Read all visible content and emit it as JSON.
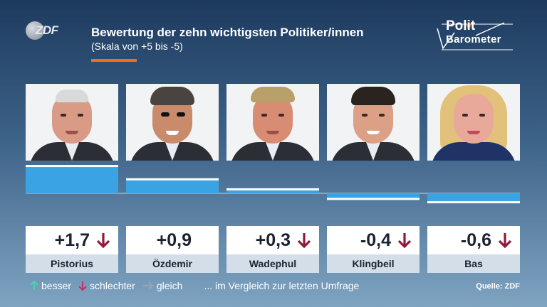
{
  "broadcaster_logo": "ZDF",
  "brand": {
    "line1": "Polit",
    "line2": "Barometer"
  },
  "header": {
    "title": "Bewertung der zehn wichtigsten Politiker/innen",
    "subtitle": "(Skala von +5 bis -5)"
  },
  "colors": {
    "accent": "#ee6f1e",
    "bar": "#3aa3e3",
    "down": "#8f1a3c",
    "up": "#4fd0b4",
    "same": "#9aa4ad"
  },
  "chart_data": {
    "type": "bar",
    "title": "Bewertung der zehn wichtigsten Politiker/innen",
    "subtitle": "(Skala von +5 bis -5)",
    "categories": [
      "Pistorius",
      "Özdemir",
      "Wadephul",
      "Klingbeil",
      "Bas"
    ],
    "values": [
      1.7,
      0.9,
      0.3,
      -0.4,
      -0.6
    ],
    "value_labels": [
      "+1,7",
      "+0,9",
      "+0,3",
      "-0,4",
      "-0,6"
    ],
    "trend": [
      "down",
      "none",
      "down",
      "down",
      "down"
    ],
    "ylim": [
      -5,
      5
    ],
    "grid": false
  },
  "cards": [
    {
      "value": "+1,7",
      "name": "Pistorius",
      "trend": "down"
    },
    {
      "value": "+0,9",
      "name": "Özdemir",
      "trend": "none"
    },
    {
      "value": "+0,3",
      "name": "Wadephul",
      "trend": "down"
    },
    {
      "value": "-0,4",
      "name": "Klingbeil",
      "trend": "down"
    },
    {
      "value": "-0,6",
      "name": "Bas",
      "trend": "down"
    }
  ],
  "legend": {
    "better": "besser",
    "worse": "schlechter",
    "same": "gleich",
    "note": "... im Vergleich zur letzten Umfrage"
  },
  "source": "Quelle: ZDF"
}
